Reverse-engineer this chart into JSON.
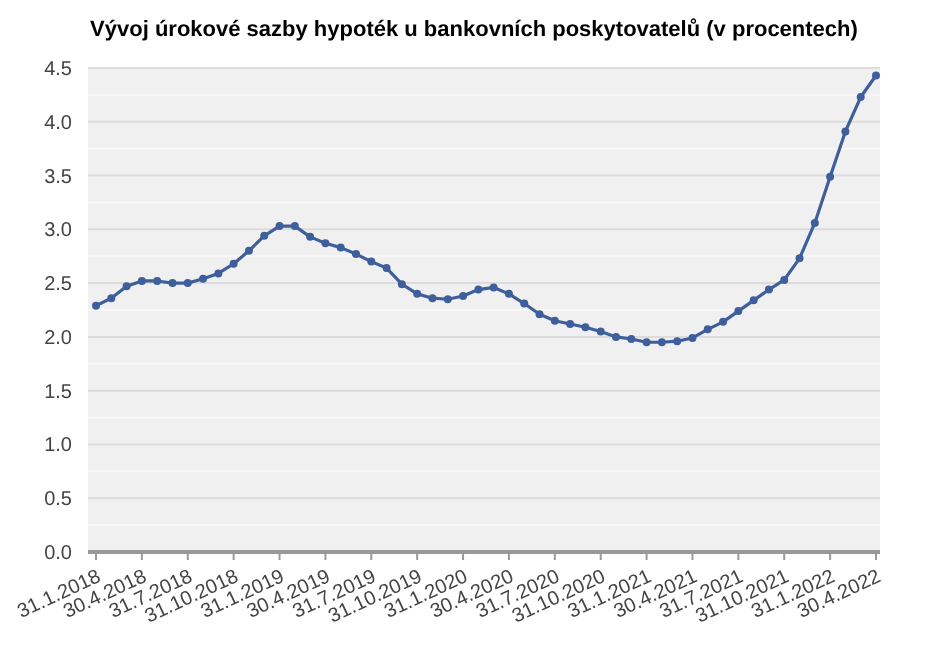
{
  "chart_data": {
    "type": "line",
    "title": "Vývoj úrokové sazby hypoték u bankovních poskytovatelů (v procentech)",
    "categories": [
      "31.1.2018",
      null,
      null,
      "30.4.2018",
      null,
      null,
      "31.7.2018",
      null,
      null,
      "31.10.2018",
      null,
      null,
      "31.1.2019",
      null,
      null,
      "30.4.2019",
      null,
      null,
      "31.7.2019",
      null,
      null,
      "31.10.2019",
      null,
      null,
      "31.1.2020",
      null,
      null,
      "30.4.2020",
      null,
      null,
      "31.7.2020",
      null,
      null,
      "31.10.2020",
      null,
      null,
      "31.1.2021",
      null,
      null,
      "30.4.2021",
      null,
      null,
      "31.7.2021",
      null,
      null,
      "31.10.2021",
      null,
      null,
      "31.1.2022",
      null,
      null,
      "30.4.2022"
    ],
    "series": [
      {
        "color": "#3f5f9c",
        "values": [
          2.29,
          2.36,
          2.47,
          2.52,
          2.52,
          2.5,
          2.5,
          2.54,
          2.59,
          2.68,
          2.8,
          2.94,
          3.03,
          3.03,
          2.93,
          2.87,
          2.83,
          2.77,
          2.7,
          2.64,
          2.49,
          2.4,
          2.36,
          2.35,
          2.38,
          2.44,
          2.46,
          2.4,
          2.31,
          2.21,
          2.15,
          2.12,
          2.09,
          2.05,
          2.0,
          1.98,
          1.95,
          1.95,
          1.96,
          1.99,
          2.07,
          2.14,
          2.24,
          2.34,
          2.44,
          2.53,
          2.73,
          3.06,
          3.49,
          3.91,
          4.23,
          4.43
        ]
      }
    ],
    "ylim": [
      0,
      4.5
    ],
    "yticks": [
      {
        "value": 0,
        "label": "0.0"
      },
      {
        "value": 0.25,
        "label": null
      },
      {
        "value": 0.5,
        "label": "0.5"
      },
      {
        "value": 0.75,
        "label": null
      },
      {
        "value": 1,
        "label": "1.0"
      },
      {
        "value": 1.25,
        "label": null
      },
      {
        "value": 1.5,
        "label": "1.5"
      },
      {
        "value": 1.75,
        "label": null
      },
      {
        "value": 2,
        "label": "2.0"
      },
      {
        "value": 2.25,
        "label": null
      },
      {
        "value": 2.5,
        "label": "2.5"
      },
      {
        "value": 2.75,
        "label": null
      },
      {
        "value": 3,
        "label": "3.0"
      },
      {
        "value": 3.25,
        "label": null
      },
      {
        "value": 3.5,
        "label": "3.5"
      },
      {
        "value": 3.75,
        "label": null
      },
      {
        "value": 4,
        "label": "4.0"
      },
      {
        "value": 4.25,
        "label": null
      },
      {
        "value": 4.5,
        "label": "4.5"
      }
    ],
    "grid": "y",
    "marker": "circle",
    "line_style": "solid"
  }
}
